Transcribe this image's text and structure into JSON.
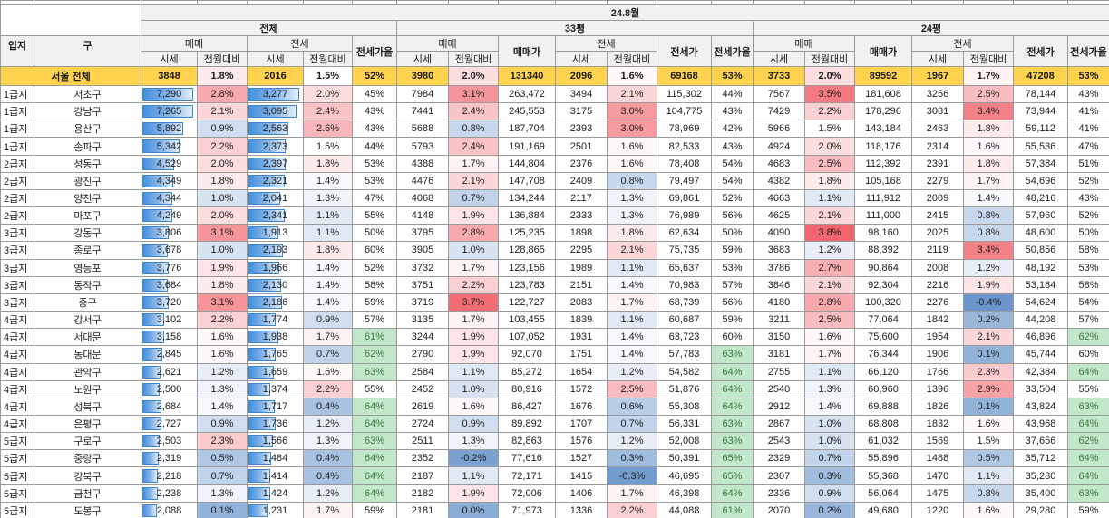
{
  "title": {
    "period": "24.8월"
  },
  "table": {
    "sections": {
      "overall": "전체",
      "py33": "33평",
      "py24": "24평"
    },
    "headers": {
      "grade": "입지",
      "district": "구",
      "trade": "매매",
      "lease": "전세",
      "price": "시세",
      "mom": "전월대비",
      "trade_price": "매매가",
      "lease_price": "전세가",
      "ratio": "전세가율"
    },
    "summary": [
      "서울 전체",
      "3848",
      "1.8%",
      "2016",
      "1.5%",
      "52%",
      "3980",
      "2.0%",
      "131340",
      "2096",
      "1.6%",
      "69168",
      "53%",
      "3733",
      "2.0%",
      "89592",
      "1967",
      "1.7%",
      "47208",
      "53%"
    ],
    "rows": [
      [
        "1급지",
        "서초구",
        "7,290",
        "2.8%",
        "3,277",
        "2.0%",
        "45%",
        "7984",
        "3.1%",
        "263,472",
        "3494",
        "2.1%",
        "115,302",
        "44%",
        "7567",
        "3.5%",
        "181,608",
        "3256",
        "2.5%",
        "78,144",
        "43%"
      ],
      [
        "1급지",
        "강남구",
        "7,265",
        "2.1%",
        "3,095",
        "2.4%",
        "43%",
        "7441",
        "2.4%",
        "245,553",
        "3175",
        "3.0%",
        "104,775",
        "43%",
        "7429",
        "2.2%",
        "178,296",
        "3081",
        "3.4%",
        "73,944",
        "41%"
      ],
      [
        "1급지",
        "용산구",
        "5,892",
        "0.9%",
        "2,563",
        "2.6%",
        "43%",
        "5688",
        "0.8%",
        "187,704",
        "2393",
        "3.0%",
        "78,969",
        "42%",
        "5966",
        "1.5%",
        "143,184",
        "2463",
        "1.8%",
        "59,112",
        "41%"
      ],
      [
        "1급지",
        "송파구",
        "5,342",
        "2.2%",
        "2,373",
        "1.5%",
        "44%",
        "5793",
        "2.4%",
        "191,169",
        "2501",
        "1.6%",
        "82,533",
        "43%",
        "4924",
        "2.0%",
        "118,176",
        "2314",
        "1.6%",
        "55,536",
        "47%"
      ],
      [
        "2급지",
        "성동구",
        "4,529",
        "2.0%",
        "2,397",
        "1.8%",
        "53%",
        "4388",
        "1.7%",
        "144,804",
        "2376",
        "1.6%",
        "78,408",
        "54%",
        "4683",
        "2.5%",
        "112,392",
        "2391",
        "1.8%",
        "57,384",
        "51%"
      ],
      [
        "2급지",
        "광진구",
        "4,349",
        "1.8%",
        "2,321",
        "1.4%",
        "53%",
        "4476",
        "2.1%",
        "147,708",
        "2409",
        "0.8%",
        "79,497",
        "54%",
        "4382",
        "1.8%",
        "105,168",
        "2279",
        "1.7%",
        "54,696",
        "52%"
      ],
      [
        "2급지",
        "양천구",
        "4,344",
        "1.0%",
        "2,041",
        "1.3%",
        "47%",
        "4068",
        "0.7%",
        "134,244",
        "2117",
        "1.3%",
        "69,861",
        "52%",
        "4663",
        "1.1%",
        "111,912",
        "2009",
        "1.4%",
        "48,216",
        "43%"
      ],
      [
        "2급지",
        "마포구",
        "4,249",
        "2.0%",
        "2,341",
        "1.1%",
        "55%",
        "4148",
        "1.9%",
        "136,884",
        "2333",
        "1.3%",
        "76,989",
        "56%",
        "4625",
        "2.1%",
        "111,000",
        "2415",
        "0.8%",
        "57,960",
        "52%"
      ],
      [
        "3급지",
        "강동구",
        "3,806",
        "3.1%",
        "1,913",
        "1.1%",
        "50%",
        "3795",
        "2.8%",
        "125,235",
        "1898",
        "1.8%",
        "62,634",
        "50%",
        "4090",
        "3.8%",
        "98,160",
        "2025",
        "0.8%",
        "48,600",
        "50%"
      ],
      [
        "3급지",
        "종로구",
        "3,678",
        "1.0%",
        "2,193",
        "1.8%",
        "60%",
        "3905",
        "1.0%",
        "128,865",
        "2295",
        "2.1%",
        "75,735",
        "59%",
        "3683",
        "1.2%",
        "88,392",
        "2119",
        "3.4%",
        "50,856",
        "58%"
      ],
      [
        "3급지",
        "영등포",
        "3,776",
        "1.9%",
        "1,966",
        "1.4%",
        "52%",
        "3732",
        "1.7%",
        "123,156",
        "1989",
        "1.1%",
        "65,637",
        "53%",
        "3786",
        "2.7%",
        "90,864",
        "2008",
        "1.2%",
        "48,192",
        "53%"
      ],
      [
        "3급지",
        "동작구",
        "3,684",
        "1.8%",
        "2,130",
        "1.4%",
        "58%",
        "3751",
        "2.2%",
        "123,783",
        "2151",
        "1.4%",
        "70,983",
        "57%",
        "3846",
        "2.1%",
        "92,304",
        "2216",
        "1.9%",
        "53,184",
        "58%"
      ],
      [
        "3급지",
        "중구",
        "3,720",
        "3.1%",
        "2,186",
        "1.4%",
        "59%",
        "3719",
        "3.7%",
        "122,727",
        "2083",
        "1.7%",
        "68,739",
        "56%",
        "4180",
        "2.8%",
        "100,320",
        "2276",
        "-0.4%",
        "54,624",
        "54%"
      ],
      [
        "4급지",
        "강서구",
        "3,102",
        "2.2%",
        "1,774",
        "0.9%",
        "57%",
        "3135",
        "1.7%",
        "103,455",
        "1839",
        "1.1%",
        "60,687",
        "59%",
        "3211",
        "2.5%",
        "77,064",
        "1842",
        "0.2%",
        "44,208",
        "57%"
      ],
      [
        "4급지",
        "서대문",
        "3,158",
        "1.6%",
        "1,938",
        "1.7%",
        "61%",
        "3244",
        "1.9%",
        "107,052",
        "1931",
        "1.4%",
        "63,723",
        "60%",
        "3150",
        "1.6%",
        "75,600",
        "1954",
        "2.1%",
        "46,896",
        "62%"
      ],
      [
        "4급지",
        "동대문",
        "2,845",
        "1.6%",
        "1,765",
        "0.7%",
        "62%",
        "2790",
        "1.9%",
        "92,070",
        "1751",
        "1.4%",
        "57,783",
        "63%",
        "3181",
        "1.7%",
        "76,344",
        "1906",
        "0.1%",
        "45,744",
        "60%"
      ],
      [
        "4급지",
        "관악구",
        "2,621",
        "1.2%",
        "1,659",
        "1.6%",
        "63%",
        "2584",
        "1.1%",
        "85,272",
        "1654",
        "1.2%",
        "54,582",
        "64%",
        "2755",
        "1.1%",
        "66,120",
        "1766",
        "2.3%",
        "42,384",
        "64%"
      ],
      [
        "4급지",
        "노원구",
        "2,500",
        "1.3%",
        "1,374",
        "2.2%",
        "55%",
        "2452",
        "1.0%",
        "80,916",
        "1572",
        "2.5%",
        "51,876",
        "64%",
        "2540",
        "1.3%",
        "60,960",
        "1396",
        "2.9%",
        "33,504",
        "55%"
      ],
      [
        "4급지",
        "성북구",
        "2,684",
        "1.4%",
        "1,717",
        "0.4%",
        "64%",
        "2619",
        "1.6%",
        "86,427",
        "1676",
        "0.6%",
        "55,308",
        "64%",
        "2912",
        "1.4%",
        "69,888",
        "1826",
        "0.1%",
        "43,824",
        "63%"
      ],
      [
        "4급지",
        "은평구",
        "2,727",
        "0.9%",
        "1,736",
        "1.2%",
        "64%",
        "2724",
        "0.9%",
        "89,892",
        "1707",
        "0.7%",
        "56,331",
        "63%",
        "2867",
        "1.0%",
        "68,808",
        "1832",
        "1.6%",
        "43,968",
        "64%"
      ],
      [
        "5급지",
        "구로구",
        "2,503",
        "2.3%",
        "1,566",
        "1.3%",
        "63%",
        "2511",
        "1.3%",
        "82,863",
        "1576",
        "1.2%",
        "52,008",
        "63%",
        "2543",
        "1.0%",
        "61,032",
        "1569",
        "1.5%",
        "37,656",
        "62%"
      ],
      [
        "5급지",
        "중랑구",
        "2,319",
        "0.5%",
        "1,484",
        "0.4%",
        "64%",
        "2352",
        "-0.2%",
        "77,616",
        "1527",
        "0.3%",
        "50,391",
        "65%",
        "2329",
        "0.7%",
        "55,896",
        "1488",
        "0.5%",
        "35,712",
        "64%"
      ],
      [
        "5급지",
        "강북구",
        "2,218",
        "0.7%",
        "1,414",
        "0.4%",
        "64%",
        "2187",
        "1.1%",
        "72,171",
        "1415",
        "-0.3%",
        "46,695",
        "65%",
        "2307",
        "0.3%",
        "55,368",
        "1470",
        "1.1%",
        "35,280",
        "64%"
      ],
      [
        "5급지",
        "금천구",
        "2,238",
        "1.3%",
        "1,424",
        "1.2%",
        "64%",
        "2182",
        "1.9%",
        "72,006",
        "1406",
        "1.7%",
        "46,398",
        "64%",
        "2336",
        "0.9%",
        "56,064",
        "1475",
        "0.8%",
        "35,400",
        "63%"
      ],
      [
        "5급지",
        "도봉구",
        "2,088",
        "0.1%",
        "1,231",
        "1.7%",
        "59%",
        "2181",
        "0.0%",
        "71,973",
        "1336",
        "2.2%",
        "44,088",
        "61%",
        "2070",
        "0.2%",
        "49,680",
        "1220",
        "1.6%",
        "29,280",
        "59%"
      ]
    ]
  },
  "colors": {
    "header_bg": "#f1f1f1",
    "summary_bg": "#ffd34d",
    "databar_blue": "#4390dd",
    "databar_border": "#3d85cd",
    "scale_red": "#f1666e",
    "scale_blue": "#6a96cb",
    "good_bg": "#c3e7ca",
    "good_text": "#35793d",
    "grid": "#9a9a9a"
  },
  "format": {
    "scale_min": -0.4,
    "scale_mid": 1.5,
    "scale_max": 3.8,
    "good_threshold": 61,
    "bar_max_trade": 7600,
    "bar_max_lease": 3420
  }
}
